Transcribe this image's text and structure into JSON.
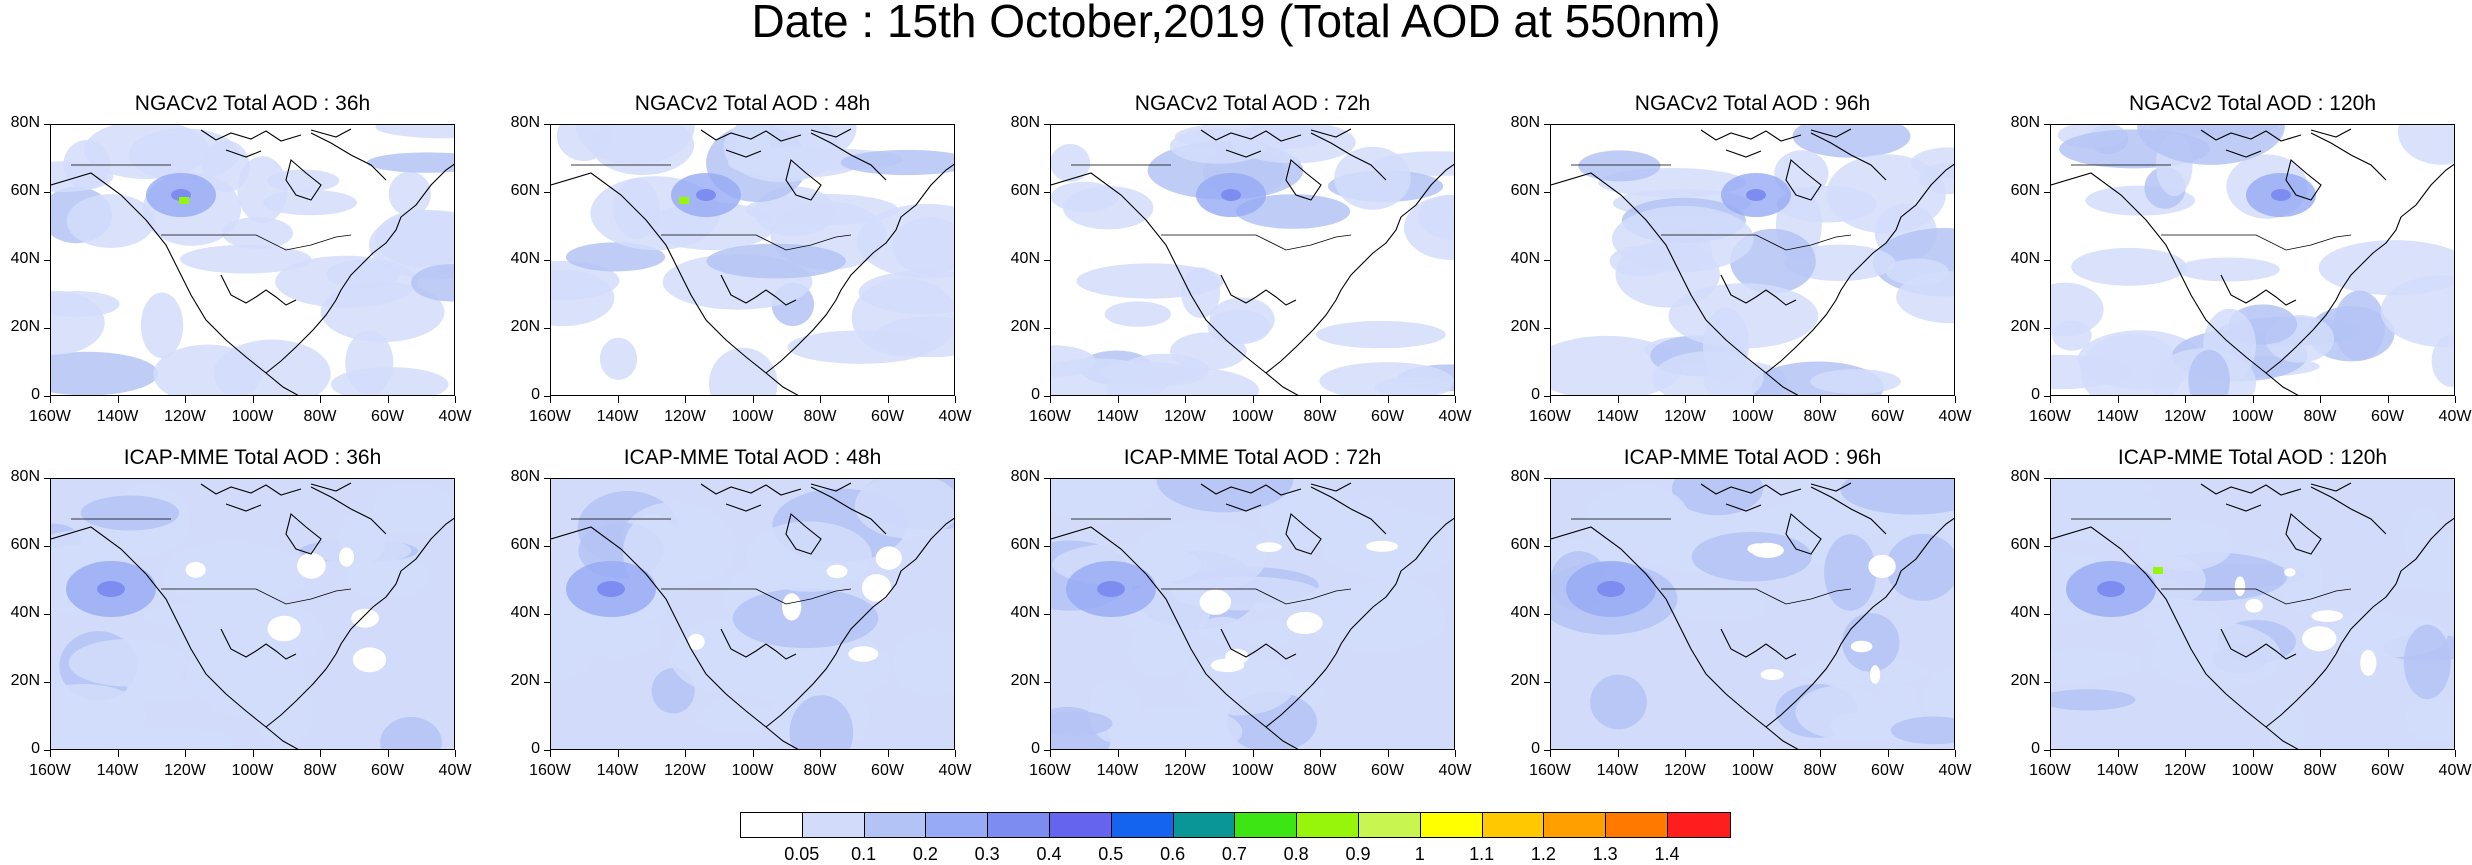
{
  "figure": {
    "title": "Date : 15th October,2019 (Total AOD at 550nm)"
  },
  "map_axes": {
    "y_labels": [
      "80N",
      "60N",
      "40N",
      "20N",
      "0"
    ],
    "x_labels": [
      "160W",
      "140W",
      "120W",
      "100W",
      "80W",
      "60W",
      "40W"
    ]
  },
  "panels": [
    {
      "title": "NGACv2 Total AOD : 36h"
    },
    {
      "title": "NGACv2 Total AOD : 48h"
    },
    {
      "title": "NGACv2 Total AOD : 72h"
    },
    {
      "title": "NGACv2 Total AOD : 96h"
    },
    {
      "title": "NGACv2 Total AOD : 120h"
    },
    {
      "title": "ICAP-MME Total AOD : 36h"
    },
    {
      "title": "ICAP-MME Total AOD : 48h"
    },
    {
      "title": "ICAP-MME Total AOD : 72h"
    },
    {
      "title": "ICAP-MME Total AOD : 96h"
    },
    {
      "title": "ICAP-MME Total AOD : 120h"
    }
  ],
  "colorbar": {
    "labels": [
      "0.05",
      "0.1",
      "0.2",
      "0.3",
      "0.4",
      "0.5",
      "0.6",
      "0.7",
      "0.8",
      "0.9",
      "1",
      "1.1",
      "1.2",
      "1.3",
      "1.4"
    ],
    "colors": [
      "#ffffff",
      "#d2dcfa",
      "#b4c3f5",
      "#96aaf5",
      "#7d8cf0",
      "#6464ee",
      "#1464f0",
      "#0a9696",
      "#3ce614",
      "#96f50a",
      "#c8f550",
      "#ffff00",
      "#ffc800",
      "#ffa000",
      "#ff7800",
      "#ff1e1e"
    ]
  }
}
